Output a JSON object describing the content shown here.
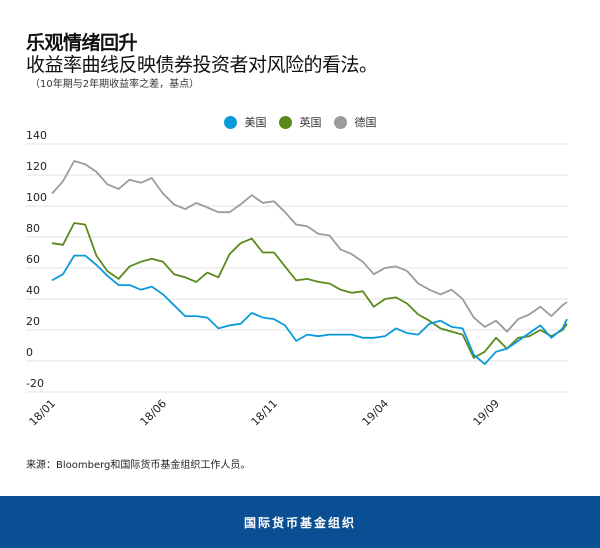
{
  "header": {
    "title": "乐观情绪回升",
    "subtitle": "收益率曲线反映债券投资者对风险的看法。",
    "note": "（10年期与2年期收益率之差，基点）"
  },
  "source": "来源：Bloomberg和国际货币基金组织工作人员。",
  "footer": {
    "org": "国际货币基金组织"
  },
  "chart_data": {
    "type": "line",
    "title": "",
    "xlabel": "",
    "ylabel": "",
    "ylim": [
      -20,
      140
    ],
    "yticks": [
      "-20",
      "0",
      "20",
      "40",
      "60",
      "80",
      "100",
      "120",
      "140"
    ],
    "xticks": [
      {
        "label": "18/01",
        "date": "2018-01-01"
      },
      {
        "label": "18/06",
        "date": "2018-06-01"
      },
      {
        "label": "18/11",
        "date": "2018-11-01"
      },
      {
        "label": "19/04",
        "date": "2019-04-01"
      },
      {
        "label": "19/09",
        "date": "2019-09-01"
      }
    ],
    "grid": true,
    "legend_position": "top-center",
    "x": [
      "2018-01-01",
      "2018-01-16",
      "2018-02-01",
      "2018-02-16",
      "2018-03-01",
      "2018-03-16",
      "2018-04-01",
      "2018-04-16",
      "2018-05-01",
      "2018-05-16",
      "2018-06-01",
      "2018-06-16",
      "2018-07-01",
      "2018-07-16",
      "2018-08-01",
      "2018-08-16",
      "2018-09-01",
      "2018-09-16",
      "2018-10-01",
      "2018-10-16",
      "2018-11-01",
      "2018-11-16",
      "2018-12-01",
      "2018-12-16",
      "2019-01-01",
      "2019-01-16",
      "2019-02-01",
      "2019-02-16",
      "2019-03-01",
      "2019-03-16",
      "2019-04-01",
      "2019-04-16",
      "2019-05-01",
      "2019-05-16",
      "2019-06-01",
      "2019-06-16",
      "2019-07-01",
      "2019-07-16",
      "2019-08-01",
      "2019-08-16",
      "2019-09-01",
      "2019-09-16",
      "2019-10-01",
      "2019-10-16",
      "2019-11-01",
      "2019-11-16",
      "2019-12-01",
      "2019-12-07"
    ],
    "series": [
      {
        "name": "美国",
        "color": "#0a9ad9",
        "values": [
          52,
          56,
          68,
          68,
          62,
          55,
          49,
          49,
          46,
          48,
          43,
          36,
          29,
          29,
          28,
          21,
          23,
          24,
          31,
          28,
          27,
          23,
          13,
          17,
          16,
          17,
          17,
          17,
          15,
          15,
          16,
          21,
          18,
          17,
          24,
          26,
          22,
          21,
          4,
          -2,
          6,
          8,
          13,
          18,
          23,
          15,
          21,
          27
        ]
      },
      {
        "name": "英国",
        "color": "#5b8a1c",
        "values": [
          76,
          75,
          89,
          88,
          68,
          58,
          53,
          61,
          64,
          66,
          64,
          56,
          54,
          51,
          57,
          54,
          69,
          76,
          79,
          70,
          70,
          61,
          52,
          53,
          51,
          50,
          46,
          44,
          45,
          35,
          40,
          41,
          37,
          30,
          26,
          21,
          19,
          17,
          2,
          6,
          15,
          8,
          15,
          16,
          20,
          16,
          20,
          24
        ]
      },
      {
        "name": "德国",
        "color": "#9b9b9b",
        "values": [
          108,
          116,
          129,
          127,
          122,
          114,
          111,
          117,
          115,
          118,
          108,
          101,
          98,
          102,
          99,
          96,
          96,
          101,
          107,
          102,
          103,
          96,
          88,
          87,
          82,
          81,
          72,
          69,
          64,
          56,
          60,
          61,
          58,
          50,
          46,
          43,
          46,
          40,
          28,
          22,
          26,
          19,
          27,
          30,
          35,
          29,
          36,
          38
        ]
      }
    ]
  }
}
